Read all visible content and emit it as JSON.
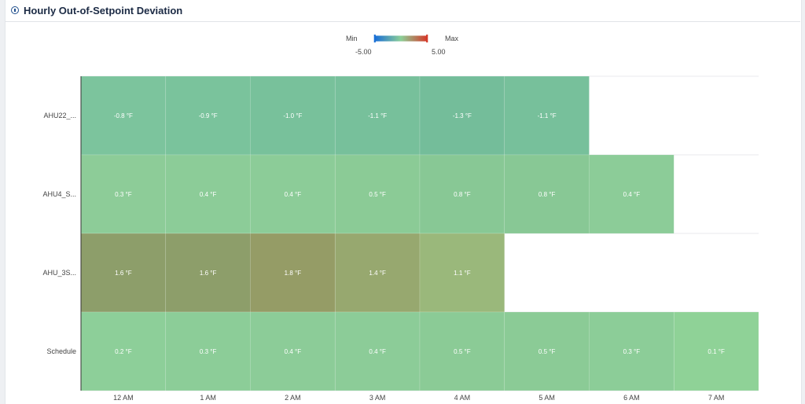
{
  "title": "Hourly Out-of-Setpoint Deviation",
  "colors": {
    "min": "#1a6fd6",
    "mid": "#8ccf97",
    "max": "#d43a2a"
  },
  "legend": {
    "min_label": "Min",
    "max_label": "Max",
    "min_value": "-5.00",
    "max_value": "5.00"
  },
  "chart_data": {
    "type": "heatmap",
    "title": "Hourly Out-of-Setpoint Deviation",
    "rows": [
      "AHU22_...",
      "AHU4_S...",
      "AHU_3S...",
      "Schedule"
    ],
    "columns": [
      "12 AM",
      "1 AM",
      "2 AM",
      "3 AM",
      "4 AM",
      "5 AM",
      "6 AM",
      "7 AM"
    ],
    "unit": "°F",
    "color_range": [
      -5,
      5
    ],
    "values": [
      [
        -0.8,
        -0.9,
        -1.0,
        -1.1,
        -1.3,
        -1.1,
        null,
        null
      ],
      [
        0.3,
        0.4,
        0.4,
        0.5,
        0.8,
        0.8,
        0.4,
        null
      ],
      [
        1.6,
        1.6,
        1.8,
        1.4,
        1.1,
        null,
        null,
        null
      ],
      [
        0.2,
        0.3,
        0.4,
        0.4,
        0.5,
        0.5,
        0.3,
        0.1
      ]
    ],
    "cell_colors": [
      [
        "#7cc49d",
        "#7ac39c",
        "#78c19b",
        "#77c09b",
        "#74bd9a",
        "#77c09b",
        null,
        null
      ],
      [
        "#8dcc98",
        "#8ccc98",
        "#8ccc98",
        "#8bcb96",
        "#88c895",
        "#88c895",
        "#8ccc98",
        null
      ],
      [
        "#8d9e6a",
        "#8d9e6a",
        "#959c66",
        "#97a86f",
        "#9ab87b",
        null,
        null,
        null
      ],
      [
        "#8dcf99",
        "#8ccd98",
        "#8ccc98",
        "#8ccc98",
        "#8bcb96",
        "#8bcb96",
        "#8ccd98",
        "#8fd297"
      ]
    ]
  }
}
